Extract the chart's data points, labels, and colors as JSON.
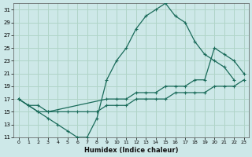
{
  "xlabel": "Humidex (Indice chaleur)",
  "background_color": "#cde8e8",
  "grid_color": "#b0d4c8",
  "line_color": "#1a6b5a",
  "xlim": [
    -0.5,
    23.5
  ],
  "ylim": [
    11,
    32
  ],
  "xtick_vals": [
    0,
    1,
    2,
    3,
    4,
    5,
    6,
    7,
    8,
    9,
    10,
    11,
    12,
    13,
    14,
    15,
    16,
    17,
    18,
    19,
    20,
    21,
    22,
    23
  ],
  "ytick_vals": [
    11,
    13,
    15,
    17,
    19,
    21,
    23,
    25,
    27,
    29,
    31
  ],
  "curve1": {
    "x": [
      0,
      1,
      2,
      3,
      4,
      5,
      6,
      7,
      8,
      9,
      10,
      11,
      12,
      13,
      14,
      15,
      16,
      17,
      18,
      19,
      20,
      21,
      22
    ],
    "y": [
      17,
      16,
      15,
      14,
      13,
      12,
      11,
      11,
      14,
      20,
      23,
      25,
      28,
      30,
      31,
      32,
      30,
      29,
      26,
      24,
      23,
      22,
      20
    ]
  },
  "curve2": {
    "x": [
      0,
      1,
      2,
      3,
      4,
      5,
      6,
      7,
      8,
      9,
      10,
      11,
      12,
      13,
      14,
      15,
      16,
      17,
      18,
      19,
      20,
      21,
      22,
      23
    ],
    "y": [
      17,
      16,
      16,
      15,
      15,
      15,
      15,
      15,
      15,
      16,
      16,
      16,
      17,
      17,
      17,
      17,
      18,
      18,
      18,
      18,
      19,
      19,
      19,
      20
    ]
  },
  "curve3": {
    "x": [
      0,
      2,
      3,
      9,
      10,
      11,
      12,
      13,
      14,
      15,
      16,
      17,
      18,
      19,
      20,
      21,
      22,
      23
    ],
    "y": [
      17,
      15,
      15,
      17,
      17,
      17,
      18,
      18,
      18,
      19,
      19,
      19,
      20,
      20,
      25,
      24,
      23,
      21
    ]
  }
}
